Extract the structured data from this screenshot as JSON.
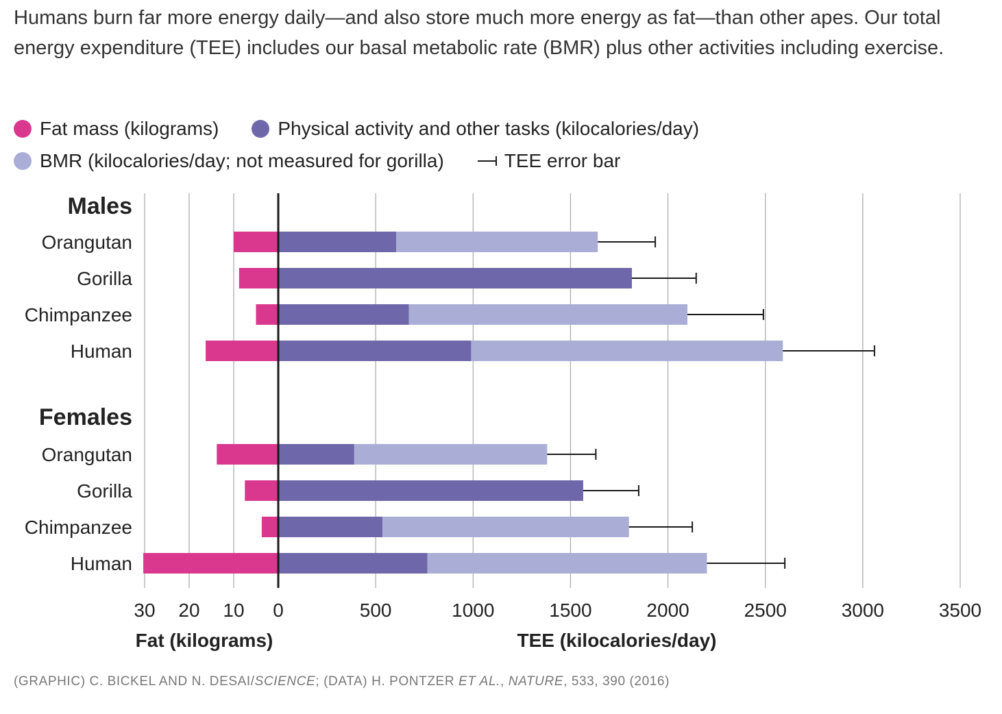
{
  "intro_text": "Humans burn far more energy daily—and also store much more energy as fat—than other apes. Our total energy expenditure (TEE) includes our basal metabolic rate (BMR) plus other activities including exercise.",
  "legend": {
    "fat": "Fat mass (kilograms)",
    "activity": "Physical activity and other tasks (kilocalories/day)",
    "bmr": "BMR (kilocalories/day; not measured for gorilla)",
    "error": "TEE error bar"
  },
  "colors": {
    "fat": "#d9388e",
    "activity": "#6e67a9",
    "bmr": "#aaaed6",
    "grid": "#a8a8a8",
    "axis": "#1a1a1a"
  },
  "credit": {
    "p1": "(GRAPHIC) C. BICKEL AND N. DESAI/",
    "p1_italic": "SCIENCE",
    "p2": "; (DATA) H. PONTZER ",
    "p2_italic": "ET AL.",
    "p3": ", ",
    "p3_italic": "NATURE",
    "p4": ", 533, 390 (2016)"
  },
  "chart_data": {
    "type": "bar",
    "orientation": "horizontal",
    "fat_axis": {
      "label": "Fat (kilograms)",
      "ticks": [
        30,
        20,
        10,
        0
      ],
      "range": [
        30,
        0
      ]
    },
    "tee_axis": {
      "label": "TEE (kilocalories/day)",
      "ticks": [
        0,
        500,
        1000,
        1500,
        2000,
        2500,
        3000,
        3500
      ],
      "range": [
        0,
        3500
      ]
    },
    "grid": true,
    "groups": [
      {
        "name": "Males",
        "rows": [
          {
            "category": "Orangutan",
            "fat_kg": 10,
            "bmr": 1035,
            "activity": 605,
            "tee": 1640,
            "tee_err_high": 1935
          },
          {
            "category": "Gorilla",
            "fat_kg": 8.8,
            "bmr": null,
            "activity": 1815,
            "tee": 1815,
            "tee_err_high": 2145
          },
          {
            "category": "Chimpanzee",
            "fat_kg": 5,
            "bmr": 1430,
            "activity": 670,
            "tee": 2100,
            "tee_err_high": 2490
          },
          {
            "category": "Human",
            "fat_kg": 16.3,
            "bmr": 1600,
            "activity": 990,
            "tee": 2590,
            "tee_err_high": 3060
          }
        ]
      },
      {
        "name": "Females",
        "rows": [
          {
            "category": "Orangutan",
            "fat_kg": 13.8,
            "bmr": 990,
            "activity": 390,
            "tee": 1380,
            "tee_err_high": 1630
          },
          {
            "category": "Gorilla",
            "fat_kg": 7.5,
            "bmr": null,
            "activity": 1565,
            "tee": 1565,
            "tee_err_high": 1850
          },
          {
            "category": "Chimpanzee",
            "fat_kg": 3.7,
            "bmr": 1265,
            "activity": 535,
            "tee": 1800,
            "tee_err_high": 2125
          },
          {
            "category": "Human",
            "fat_kg": 30.3,
            "bmr": 1435,
            "activity": 765,
            "tee": 2200,
            "tee_err_high": 2600
          }
        ]
      }
    ]
  }
}
